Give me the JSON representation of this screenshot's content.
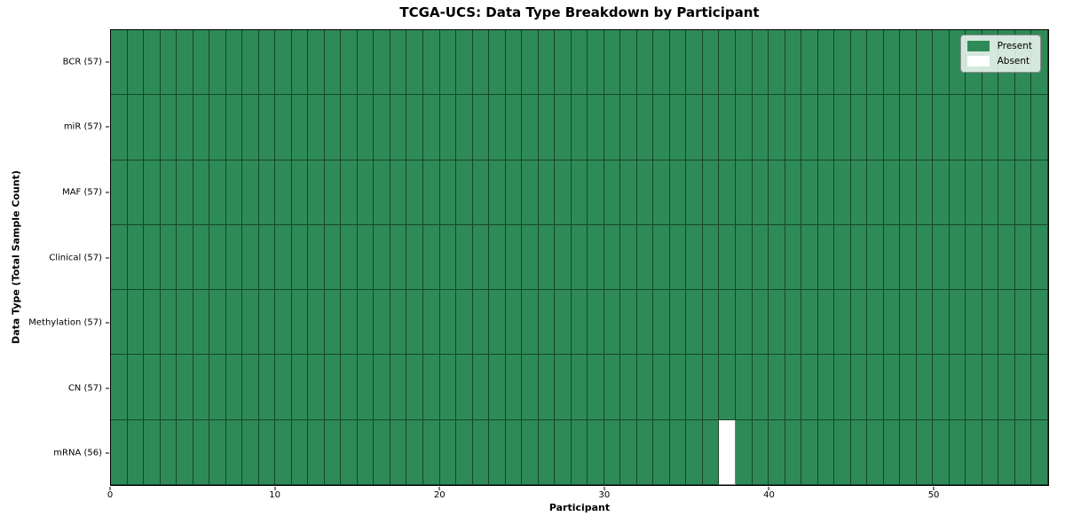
{
  "chart_data": {
    "type": "heatmap",
    "title": "TCGA-UCS: Data Type Breakdown by Participant",
    "xlabel": "Participant",
    "ylabel": "Data Type (Total Sample Count)",
    "n_participants": 57,
    "x_ticks": [
      0,
      10,
      20,
      30,
      40,
      50
    ],
    "xlim": [
      0,
      57
    ],
    "grid": true,
    "legend_position": "upper right",
    "rows": [
      {
        "label": "BCR (57)",
        "data_type": "BCR",
        "present_count": 57,
        "absent_participants": []
      },
      {
        "label": "miR (57)",
        "data_type": "miR",
        "present_count": 57,
        "absent_participants": []
      },
      {
        "label": "MAF (57)",
        "data_type": "MAF",
        "present_count": 57,
        "absent_participants": []
      },
      {
        "label": "Clinical (57)",
        "data_type": "Clinical",
        "present_count": 57,
        "absent_participants": []
      },
      {
        "label": "Methylation (57)",
        "data_type": "Methylation",
        "present_count": 57,
        "absent_participants": []
      },
      {
        "label": "CN (57)",
        "data_type": "CN",
        "present_count": 57,
        "absent_participants": []
      },
      {
        "label": "mRNA (56)",
        "data_type": "mRNA",
        "present_count": 56,
        "absent_participants": [
          37
        ]
      }
    ],
    "legend": [
      {
        "label": "Present",
        "color": "#2E8B57"
      },
      {
        "label": "Absent",
        "color": "#FFFFFF"
      }
    ],
    "colors": {
      "present": "#2E8B57",
      "absent": "#FFFFFF",
      "grid_line": "rgba(0,0,0,0.50)",
      "axis": "#000000"
    }
  }
}
